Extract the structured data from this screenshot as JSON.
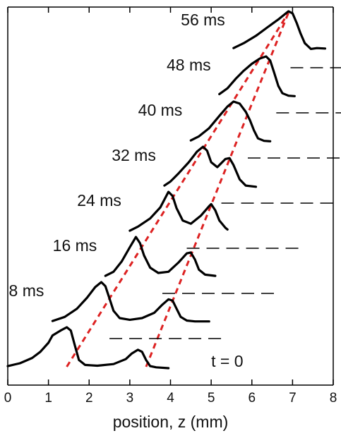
{
  "chart_data": {
    "type": "line",
    "xlabel": "position, z (mm)",
    "xlim": [
      0,
      8
    ],
    "x_ticks": [
      "0",
      "1",
      "2",
      "3",
      "4",
      "5",
      "6",
      "7",
      "8"
    ],
    "ylabel": "",
    "y_ticks_visible": false,
    "grid": false,
    "legend": "none",
    "line_color": "#000000",
    "guide_color": "#dd2222",
    "series": [
      {
        "name": "t = 0",
        "points": [
          [
            0.0,
            0.05
          ],
          [
            0.3,
            0.12
          ],
          [
            0.6,
            0.25
          ],
          [
            0.8,
            0.4
          ],
          [
            1.0,
            0.62
          ],
          [
            1.1,
            0.8
          ],
          [
            1.3,
            0.92
          ],
          [
            1.45,
            1.0
          ],
          [
            1.55,
            0.92
          ],
          [
            1.65,
            0.55
          ],
          [
            1.75,
            0.2
          ],
          [
            1.9,
            0.08
          ],
          [
            2.2,
            0.06
          ],
          [
            2.6,
            0.1
          ],
          [
            2.9,
            0.22
          ],
          [
            3.05,
            0.36
          ],
          [
            3.2,
            0.45
          ],
          [
            3.3,
            0.4
          ],
          [
            3.4,
            0.2
          ],
          [
            3.5,
            0.05
          ],
          [
            3.65,
            0.02
          ],
          [
            3.95,
            0.0
          ]
        ]
      },
      {
        "name": "8 ms",
        "points": [
          [
            1.1,
            0.05
          ],
          [
            1.4,
            0.15
          ],
          [
            1.7,
            0.35
          ],
          [
            1.95,
            0.62
          ],
          [
            2.15,
            0.88
          ],
          [
            2.3,
            1.0
          ],
          [
            2.4,
            0.9
          ],
          [
            2.5,
            0.6
          ],
          [
            2.6,
            0.3
          ],
          [
            2.75,
            0.12
          ],
          [
            3.0,
            0.08
          ],
          [
            3.3,
            0.12
          ],
          [
            3.6,
            0.25
          ],
          [
            3.8,
            0.45
          ],
          [
            3.95,
            0.58
          ],
          [
            4.05,
            0.55
          ],
          [
            4.15,
            0.35
          ],
          [
            4.25,
            0.15
          ],
          [
            4.4,
            0.06
          ],
          [
            4.6,
            0.04
          ],
          [
            4.95,
            0.04
          ]
        ]
      },
      {
        "name": "16 ms",
        "points": [
          [
            2.4,
            0.05
          ],
          [
            2.6,
            0.15
          ],
          [
            2.8,
            0.4
          ],
          [
            3.0,
            0.75
          ],
          [
            3.15,
            1.0
          ],
          [
            3.25,
            0.85
          ],
          [
            3.35,
            0.55
          ],
          [
            3.5,
            0.25
          ],
          [
            3.7,
            0.12
          ],
          [
            3.95,
            0.15
          ],
          [
            4.2,
            0.38
          ],
          [
            4.4,
            0.6
          ],
          [
            4.5,
            0.62
          ],
          [
            4.6,
            0.45
          ],
          [
            4.7,
            0.2
          ],
          [
            4.85,
            0.08
          ],
          [
            5.1,
            0.05
          ]
        ]
      },
      {
        "name": "24 ms",
        "points": [
          [
            3.0,
            0.05
          ],
          [
            3.2,
            0.15
          ],
          [
            3.5,
            0.35
          ],
          [
            3.75,
            0.62
          ],
          [
            3.95,
            1.0
          ],
          [
            4.05,
            0.9
          ],
          [
            4.15,
            0.6
          ],
          [
            4.3,
            0.3
          ],
          [
            4.5,
            0.22
          ],
          [
            4.75,
            0.42
          ],
          [
            4.95,
            0.65
          ],
          [
            5.0,
            0.7
          ],
          [
            5.1,
            0.55
          ],
          [
            5.2,
            0.3
          ],
          [
            5.35,
            0.12
          ],
          [
            5.4,
            0.08
          ]
        ]
      },
      {
        "name": "32 ms",
        "points": [
          [
            3.85,
            0.05
          ],
          [
            4.0,
            0.15
          ],
          [
            4.2,
            0.35
          ],
          [
            4.45,
            0.62
          ],
          [
            4.65,
            0.88
          ],
          [
            4.8,
            1.0
          ],
          [
            4.9,
            0.9
          ],
          [
            5.0,
            0.62
          ],
          [
            5.15,
            0.5
          ],
          [
            5.35,
            0.7
          ],
          [
            5.45,
            0.72
          ],
          [
            5.55,
            0.55
          ],
          [
            5.7,
            0.2
          ],
          [
            5.85,
            0.05
          ],
          [
            6.1,
            0.02
          ]
        ]
      },
      {
        "name": "40 ms",
        "points": [
          [
            4.5,
            0.05
          ],
          [
            4.7,
            0.15
          ],
          [
            4.95,
            0.35
          ],
          [
            5.2,
            0.65
          ],
          [
            5.4,
            0.88
          ],
          [
            5.55,
            1.0
          ],
          [
            5.7,
            0.95
          ],
          [
            5.85,
            0.75
          ],
          [
            5.95,
            0.55
          ],
          [
            6.05,
            0.3
          ],
          [
            6.15,
            0.1
          ],
          [
            6.3,
            0.04
          ],
          [
            6.45,
            0.03
          ]
        ]
      },
      {
        "name": "48 ms",
        "points": [
          [
            5.2,
            0.08
          ],
          [
            5.4,
            0.22
          ],
          [
            5.6,
            0.45
          ],
          [
            5.8,
            0.65
          ],
          [
            6.0,
            0.82
          ],
          [
            6.2,
            0.95
          ],
          [
            6.35,
            1.0
          ],
          [
            6.45,
            0.9
          ],
          [
            6.55,
            0.6
          ],
          [
            6.65,
            0.28
          ],
          [
            6.75,
            0.1
          ],
          [
            6.9,
            0.04
          ],
          [
            7.05,
            0.03
          ]
        ]
      },
      {
        "name": "56 ms",
        "points": [
          [
            5.55,
            0.1
          ],
          [
            5.8,
            0.22
          ],
          [
            6.1,
            0.4
          ],
          [
            6.4,
            0.62
          ],
          [
            6.65,
            0.8
          ],
          [
            6.8,
            0.92
          ],
          [
            6.9,
            1.0
          ],
          [
            7.0,
            0.95
          ],
          [
            7.1,
            0.72
          ],
          [
            7.2,
            0.45
          ],
          [
            7.3,
            0.22
          ],
          [
            7.45,
            0.08
          ],
          [
            7.6,
            0.1
          ],
          [
            7.8,
            0.09
          ]
        ]
      }
    ],
    "guide_lines": [
      [
        [
          1.45,
          0
        ],
        [
          6.9,
          7
        ]
      ],
      [
        [
          3.4,
          0
        ],
        [
          6.9,
          7
        ]
      ]
    ]
  }
}
